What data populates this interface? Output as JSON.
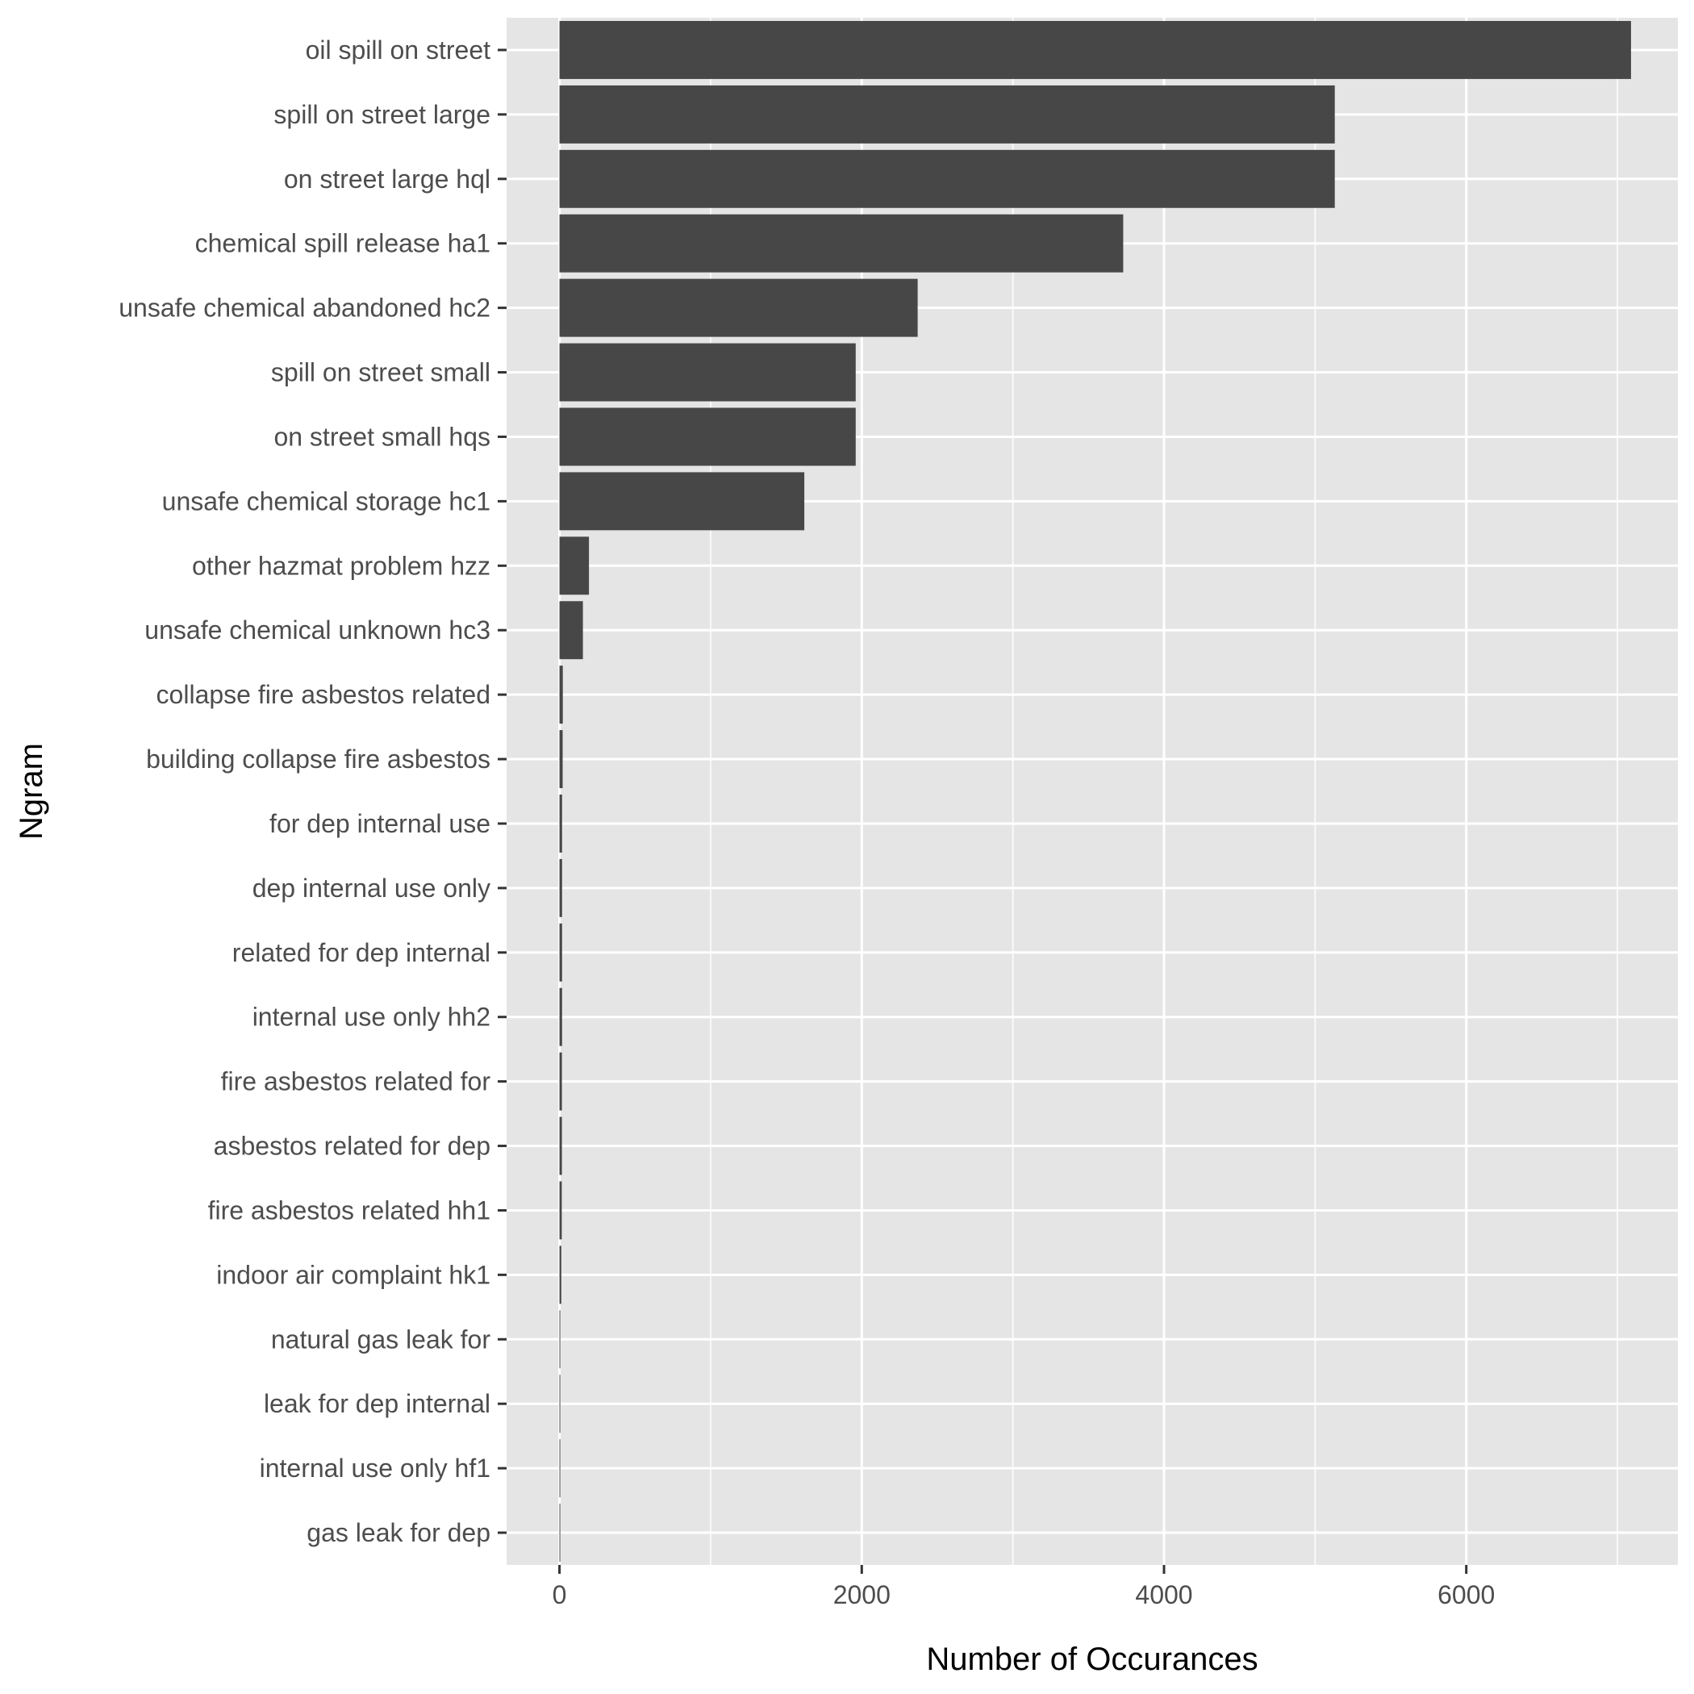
{
  "chart_data": {
    "type": "bar",
    "orientation": "horizontal",
    "title": "",
    "xlabel": "Number of Occurances",
    "ylabel": "Ngram",
    "xlim": [
      -350,
      7400
    ],
    "x_ticks": [
      0,
      2000,
      4000,
      6000
    ],
    "x_tick_labels": [
      "0",
      "2000",
      "4000",
      "6000"
    ],
    "grid": true,
    "panel_color": "#e5e5e5",
    "bar_color": "#474747",
    "categories": [
      "oil spill on street",
      "spill on street large",
      "on street large hql",
      "chemical spill release ha1",
      "unsafe chemical abandoned hc2",
      "spill on street small",
      "on street small hqs",
      "unsafe chemical storage hc1",
      "other hazmat problem hzz",
      "unsafe chemical unknown hc3",
      "collapse fire asbestos related",
      "building collapse fire asbestos",
      "for dep internal use",
      "dep internal use only",
      "related for dep internal",
      "internal use only hh2",
      "fire asbestos related for",
      "asbestos related for dep",
      "fire asbestos related hh1",
      "indoor air complaint hk1",
      "natural gas leak for",
      "leak for dep internal",
      "internal use only hf1",
      "gas leak for dep"
    ],
    "values": [
      7090,
      5130,
      5130,
      3730,
      2370,
      1960,
      1960,
      1620,
      195,
      155,
      22,
      21,
      17,
      17,
      17,
      17,
      16,
      16,
      15,
      12,
      4,
      4,
      3,
      3
    ]
  }
}
